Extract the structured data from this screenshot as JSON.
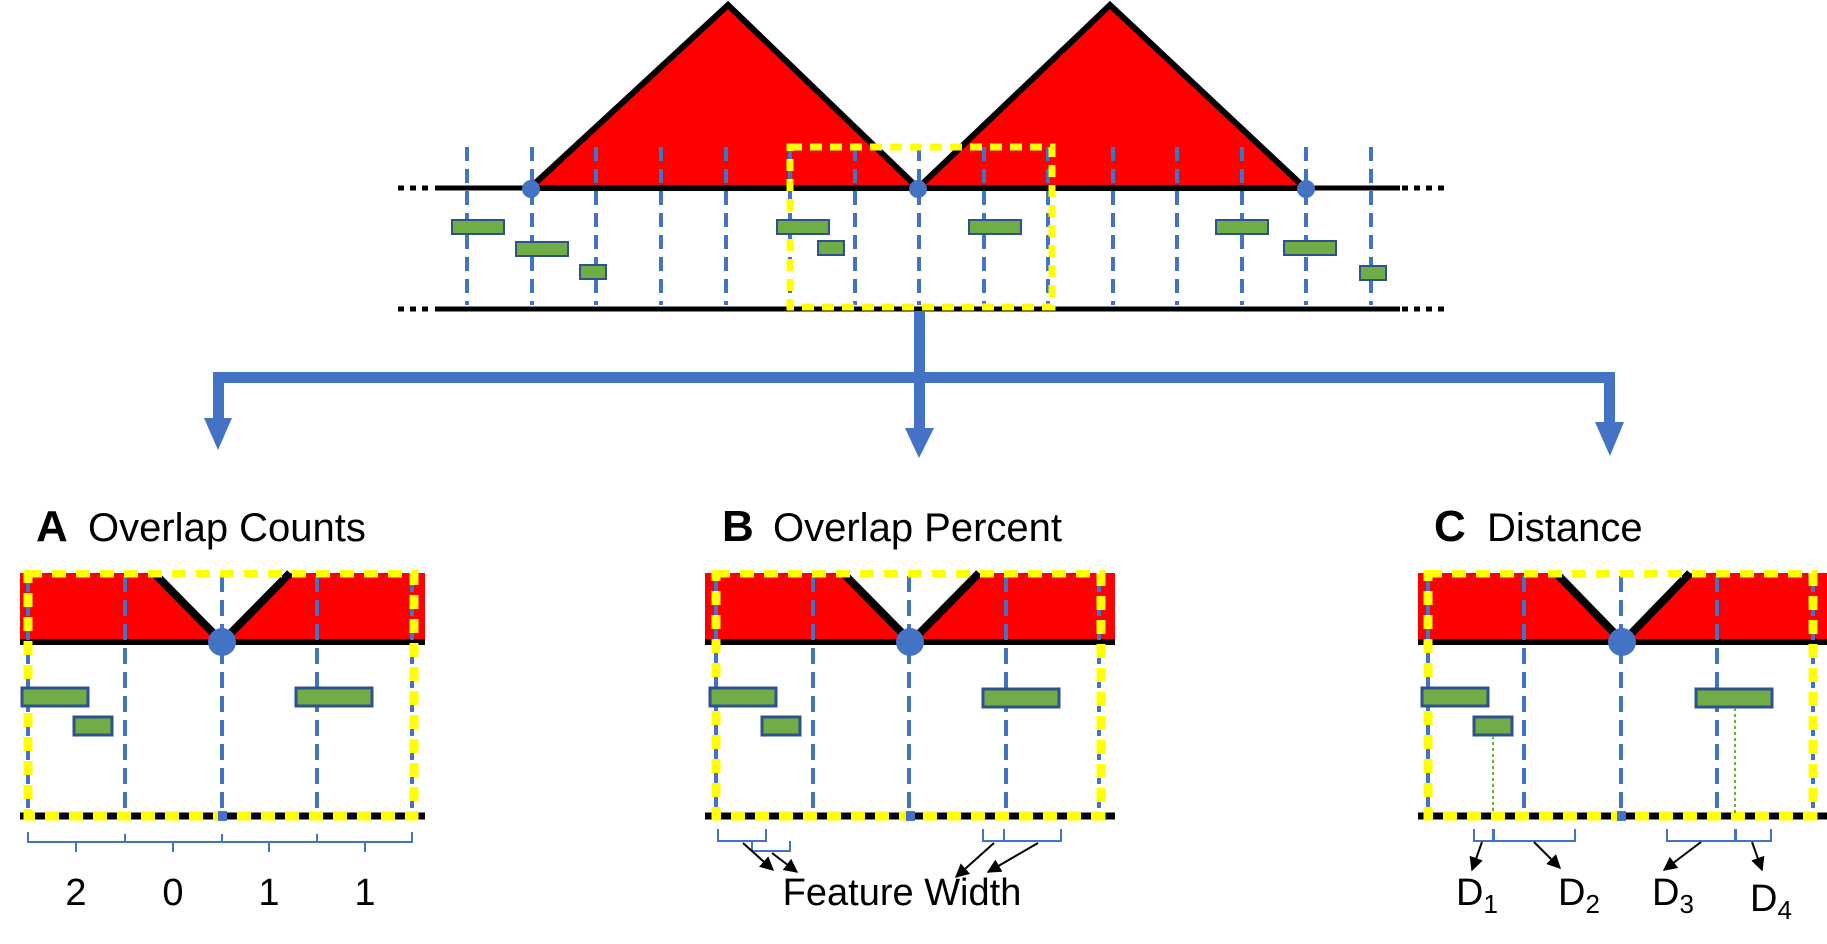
{
  "panels": {
    "a": {
      "letter": "A",
      "title": "Overlap Counts",
      "counts": [
        "2",
        "0",
        "1",
        "1"
      ]
    },
    "b": {
      "letter": "B",
      "title": "Overlap Percent",
      "label": "Feature Width"
    },
    "c": {
      "letter": "C",
      "title": "Distance",
      "labels": [
        {
          "main": "D",
          "sub": "1"
        },
        {
          "main": "D",
          "sub": "2"
        },
        {
          "main": "D",
          "sub": "3"
        },
        {
          "main": "D",
          "sub": "4"
        }
      ]
    }
  },
  "colors": {
    "peak": "#ff0000",
    "bin_line": "#4472c4",
    "window": "#ffff00",
    "feature_fill": "#70ad47",
    "feature_stroke": "#2f528f",
    "arrow": "#4472c4"
  }
}
